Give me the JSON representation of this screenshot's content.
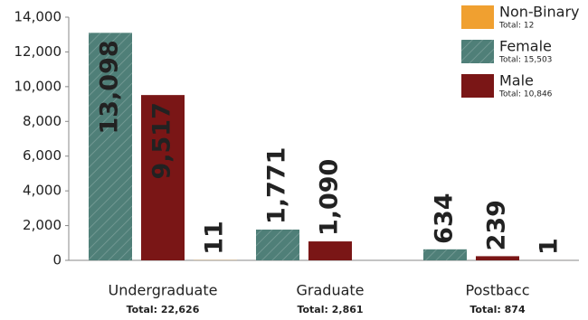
{
  "chart_data": {
    "type": "bar",
    "categories": [
      "Undergraduate",
      "Graduate",
      "Postbacc"
    ],
    "category_totals": [
      "Total: 22,626",
      "Total: 2,861",
      "Total: 874"
    ],
    "series": [
      {
        "name": "Female",
        "total": "Total: 15,503",
        "color": "#4f7f78",
        "values": [
          13098,
          1771,
          634
        ],
        "value_labels": [
          "13,098",
          "1,771",
          "634"
        ]
      },
      {
        "name": "Male",
        "total": "Total: 10,846",
        "color": "#7a1616",
        "values": [
          9517,
          1090,
          239
        ],
        "value_labels": [
          "9,517",
          "1,090",
          "239"
        ]
      },
      {
        "name": "Non-Binary",
        "total": "Total: 12",
        "color": "#f0a030",
        "values": [
          11,
          null,
          1
        ],
        "value_labels": [
          "11",
          null,
          "1"
        ]
      }
    ],
    "ylim": [
      0,
      14000
    ],
    "yticks": [
      {
        "value": 0,
        "label": "0"
      },
      {
        "value": 2000,
        "label": "2,000"
      },
      {
        "value": 4000,
        "label": "4,000"
      },
      {
        "value": 6000,
        "label": "6,000"
      },
      {
        "value": 8000,
        "label": "8,000"
      },
      {
        "value": 10000,
        "label": "10,000"
      },
      {
        "value": 12000,
        "label": "12,000"
      },
      {
        "value": 14000,
        "label": "14,000"
      }
    ],
    "legend": "top-right"
  }
}
